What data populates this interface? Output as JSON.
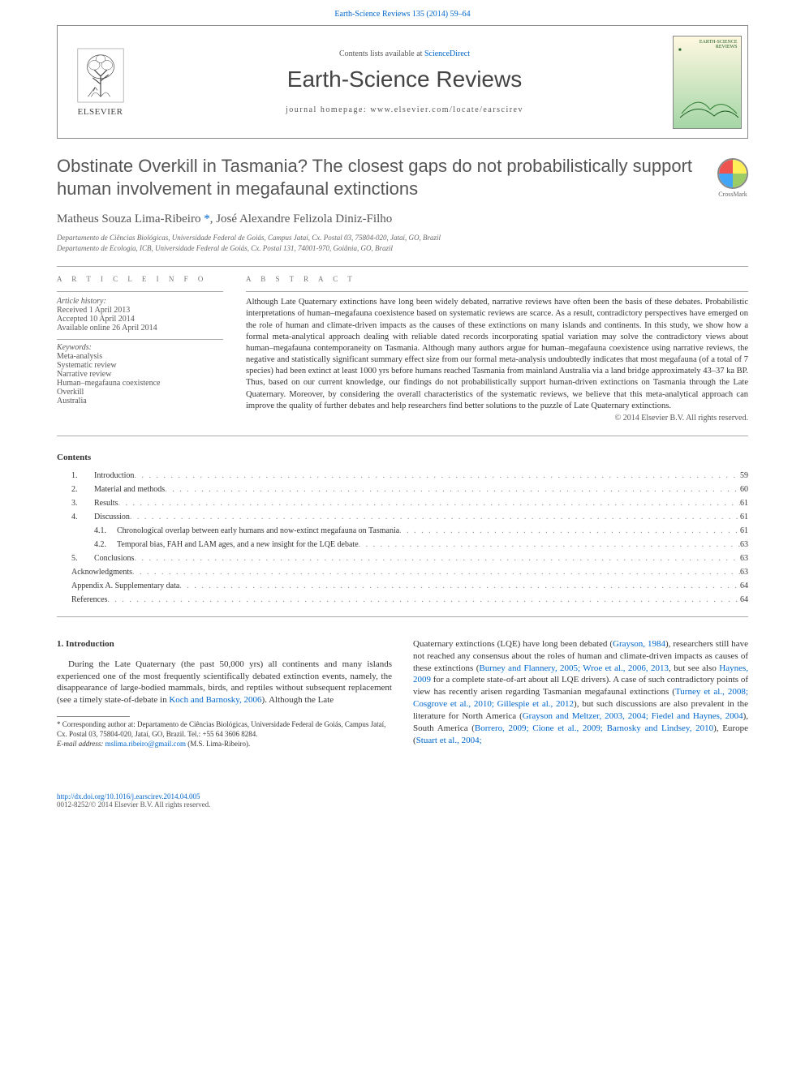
{
  "header": {
    "volume_line": "Earth-Science Reviews 135 (2014) 59–64",
    "contents_prefix": "Contents lists available at ",
    "contents_link": "ScienceDirect",
    "journal_title": "Earth-Science Reviews",
    "homepage_prefix": "journal homepage: ",
    "homepage": "www.elsevier.com/locate/earscirev",
    "publisher": "ELSEVIER",
    "cover_text_line1": "EARTH-SCIENCE",
    "cover_text_line2": "REVIEWS"
  },
  "crossmark": {
    "label": "CrossMark",
    "colors": [
      "#ef5350",
      "#ffee58",
      "#42a5f5",
      "#9ccc65"
    ]
  },
  "article": {
    "title": "Obstinate Overkill in Tasmania? The closest gaps do not probabilistically support human involvement in megafaunal extinctions",
    "authors": "Matheus Souza Lima-Ribeiro *, José Alexandre Felizola Diniz-Filho",
    "affiliations": [
      "Departamento de Ciências Biológicas, Universidade Federal de Goiás, Campus Jataí, Cx. Postal 03, 75804-020, Jataí, GO, Brazil",
      "Departamento de Ecologia, ICB, Universidade Federal de Goiás, Cx. Postal 131, 74001-970, Goiânia, GO, Brazil"
    ]
  },
  "info": {
    "heading": "A R T I C L E   I N F O",
    "history_head": "Article history:",
    "received": "Received 1 April 2013",
    "accepted": "Accepted 10 April 2014",
    "online": "Available online 26 April 2014",
    "keywords_head": "Keywords:",
    "keywords": [
      "Meta-analysis",
      "Systematic review",
      "Narrative review",
      "Human–megafauna coexistence",
      "Overkill",
      "Australia"
    ]
  },
  "abstract": {
    "heading": "A B S T R A C T",
    "text": "Although Late Quaternary extinctions have long been widely debated, narrative reviews have often been the basis of these debates. Probabilistic interpretations of human–megafauna coexistence based on systematic reviews are scarce. As a result, contradictory perspectives have emerged on the role of human and climate-driven impacts as the causes of these extinctions on many islands and continents. In this study, we show how a formal meta-analytical approach dealing with reliable dated records incorporating spatial variation may solve the contradictory views about human–megafauna contemporaneity on Tasmania. Although many authors argue for human–megafauna coexistence using narrative reviews, the negative and statistically significant summary effect size from our formal meta-analysis undoubtedly indicates that most megafauna (of a total of 7 species) had been extinct at least 1000 yrs before humans reached Tasmania from mainland Australia via a land bridge approximately 43–37 ka BP. Thus, based on our current knowledge, our findings do not probabilistically support human-driven extinctions on Tasmania through the Late Quaternary. Moreover, by considering the overall characteristics of the systematic reviews, we believe that this meta-analytical approach can improve the quality of further debates and help researchers find better solutions to the puzzle of Late Quaternary extinctions.",
    "copyright": "© 2014 Elsevier B.V. All rights reserved."
  },
  "contents": {
    "heading": "Contents",
    "items": [
      {
        "num": "1.",
        "label": "Introduction",
        "page": "59",
        "indent": 0
      },
      {
        "num": "2.",
        "label": "Material and methods",
        "page": "60",
        "indent": 0
      },
      {
        "num": "3.",
        "label": "Results",
        "page": "61",
        "indent": 0
      },
      {
        "num": "4.",
        "label": "Discussion",
        "page": "61",
        "indent": 0
      },
      {
        "num": "4.1.",
        "label": "Chronological overlap between early humans and now-extinct megafauna on Tasmania",
        "page": "61",
        "indent": 1
      },
      {
        "num": "4.2.",
        "label": "Temporal bias, FAH and LAM ages, and a new insight for the LQE debate",
        "page": "63",
        "indent": 1
      },
      {
        "num": "5.",
        "label": "Conclusions",
        "page": "63",
        "indent": 0
      },
      {
        "num": "",
        "label": "Acknowledgments",
        "page": "63",
        "indent": 0
      },
      {
        "num": "",
        "label": "Appendix A.    Supplementary data",
        "page": "64",
        "indent": 0
      },
      {
        "num": "",
        "label": "References",
        "page": "64",
        "indent": 0
      }
    ]
  },
  "body": {
    "intro_heading": "1. Introduction",
    "left_p1_a": "During the Late Quaternary (the past 50,000 yrs) all continents and many islands experienced one of the most frequently scientifically debated extinction events, namely, the disappearance of large-bodied mammals, birds, and reptiles without subsequent replacement (see a timely state-of-debate in ",
    "left_cite1": "Koch and Barnosky, 2006",
    "left_p1_b": "). Although the Late",
    "right_p1_a": "Quaternary extinctions (LQE) have long been debated (",
    "right_cite1": "Grayson, 1984",
    "right_p1_b": "), researchers still have not reached any consensus about the roles of human and climate-driven impacts as causes of these extinctions (",
    "right_cite2": "Burney and Flannery, 2005; Wroe et al., 2006, 2013",
    "right_p1_c": ", but see also ",
    "right_cite3": "Haynes, 2009",
    "right_p1_d": " for a complete state-of-art about all LQE drivers). A case of such contradictory points of view has recently arisen regarding Tasmanian megafaunal extinctions (",
    "right_cite4": "Turney et al., 2008; Cosgrove et al., 2010; Gillespie et al., 2012",
    "right_p1_e": "), but such discussions are also prevalent in the literature for North America (",
    "right_cite5": "Grayson and Meltzer, 2003, 2004; Fiedel and Haynes, 2004",
    "right_p1_f": "), South America (",
    "right_cite6": "Borrero, 2009; Cione et al., 2009; Barnosky and Lindsey, 2010",
    "right_p1_g": "), Europe (",
    "right_cite7": "Stuart et al., 2004;"
  },
  "footnote": {
    "line1": "* Corresponding author at: Departamento de Ciências Biológicas, Universidade Federal de Goiás, Campus Jataí, Cx. Postal 03, 75804-020, Jataí, GO, Brazil. Tel.: +55 64 3606 8284.",
    "email_label": "E-mail address: ",
    "email": "mslima.ribeiro@gmail.com",
    "email_suffix": " (M.S. Lima-Ribeiro)."
  },
  "footer": {
    "doi": "http://dx.doi.org/10.1016/j.earscirev.2014.04.005",
    "issn_line": "0012-8252/© 2014 Elsevier B.V. All rights reserved."
  },
  "colors": {
    "link": "#0066cc",
    "text": "#333333",
    "muted": "#555555",
    "rule": "#aaaaaa"
  }
}
